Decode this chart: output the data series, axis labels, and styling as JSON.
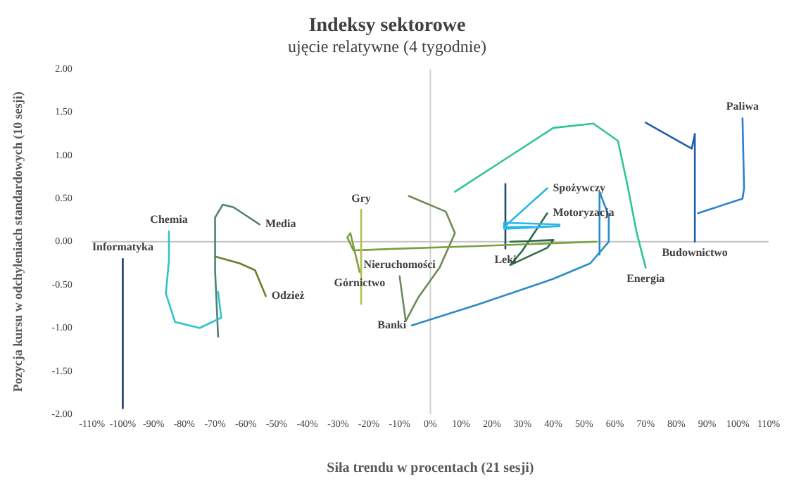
{
  "chart_data": {
    "type": "line",
    "title": "Indeksy sektorowe",
    "subtitle": "ujęcie relatywne (4 tygodnie)",
    "xlabel": "Siła trendu w procentach (21 sesji)",
    "ylabel": "Pozycja kursu w odchyleniach standardowych (10 sesji)",
    "xlim": [
      -110,
      110
    ],
    "ylim": [
      -2,
      2
    ],
    "xticks": [
      {
        "value": -110,
        "label": "-110%"
      },
      {
        "value": -100,
        "label": "-100%"
      },
      {
        "value": -90,
        "label": "-90%"
      },
      {
        "value": -80,
        "label": "-80%"
      },
      {
        "value": -70,
        "label": "-70%"
      },
      {
        "value": -60,
        "label": "-60%"
      },
      {
        "value": -50,
        "label": "-50%"
      },
      {
        "value": -40,
        "label": "-40%"
      },
      {
        "value": -30,
        "label": "-30%"
      },
      {
        "value": -20,
        "label": "-20%"
      },
      {
        "value": -10,
        "label": "-10%"
      },
      {
        "value": 0,
        "label": "0%"
      },
      {
        "value": 10,
        "label": "10%"
      },
      {
        "value": 20,
        "label": "20%"
      },
      {
        "value": 30,
        "label": "30%"
      },
      {
        "value": 40,
        "label": "40%"
      },
      {
        "value": 50,
        "label": "50%"
      },
      {
        "value": 60,
        "label": "60%"
      },
      {
        "value": 70,
        "label": "70%"
      },
      {
        "value": 80,
        "label": "80%"
      },
      {
        "value": 90,
        "label": "90%"
      },
      {
        "value": 100,
        "label": "100%"
      },
      {
        "value": 110,
        "label": "110%"
      }
    ],
    "yticks": [
      {
        "value": -2,
        "label": "-2.00"
      },
      {
        "value": -1.5,
        "label": "-1.50"
      },
      {
        "value": -1,
        "label": "-1.00"
      },
      {
        "value": -0.5,
        "label": "-0.50"
      },
      {
        "value": 0,
        "label": "0.00"
      },
      {
        "value": 0.5,
        "label": "0.50"
      },
      {
        "value": 1,
        "label": "1.00"
      },
      {
        "value": 1.5,
        "label": "1.50"
      },
      {
        "value": 2,
        "label": "2.00"
      }
    ],
    "grid": false,
    "legend": false,
    "line_style": "solid",
    "ref_lines": [
      {
        "axis": "x",
        "value": 0,
        "color": "#d0d0d0"
      },
      {
        "axis": "y",
        "value": 0,
        "color": "#c4c4c4"
      }
    ],
    "series": [
      {
        "name": "Informatyka",
        "color": "#1f3864",
        "x": [
          -100,
          -100
        ],
        "values": [
          -1.93,
          -0.2
        ]
      },
      {
        "name": "Chemia",
        "color": "#2ec4cc",
        "x": [
          -69,
          -68,
          -75,
          -83,
          -86,
          -85,
          -85
        ],
        "values": [
          -0.58,
          -0.88,
          -1.0,
          -0.93,
          -0.6,
          -0.22,
          0.12
        ]
      },
      {
        "name": "Media",
        "color": "#4f7f7a",
        "x": [
          -69,
          -70,
          -70,
          -67.5,
          -64,
          -55.5
        ],
        "values": [
          -1.1,
          -0.33,
          0.28,
          0.43,
          0.4,
          0.2
        ]
      },
      {
        "name": "Odzież",
        "color": "#6b7f2a",
        "x": [
          -70,
          -62,
          -57,
          -53.5
        ],
        "values": [
          -0.17,
          -0.25,
          -0.33,
          -0.63
        ]
      },
      {
        "name": "Gry",
        "color": "#b0c050",
        "x": [
          -22.5,
          -22.5
        ],
        "values": [
          -0.72,
          0.37
        ]
      },
      {
        "name": "Górnictwo",
        "color": "#7aa040",
        "x": [
          54,
          15,
          -10,
          -25,
          -27,
          -26,
          -23
        ],
        "values": [
          0.0,
          -0.05,
          -0.08,
          -0.1,
          0.05,
          0.1,
          -0.35
        ]
      },
      {
        "name": "Nieruchomości",
        "color": "#6e8a5a",
        "x": [
          -7,
          5,
          8,
          3,
          -4,
          -8,
          -10
        ],
        "values": [
          0.53,
          0.35,
          0.1,
          -0.3,
          -0.65,
          -0.92,
          -0.4
        ]
      },
      {
        "name": "Banki",
        "color": "#2b8cc4",
        "x": [
          55,
          55,
          58,
          58,
          52,
          40,
          16,
          -6
        ],
        "values": [
          -0.15,
          0.58,
          0.3,
          0.0,
          -0.25,
          -0.43,
          -0.72,
          -0.97
        ]
      },
      {
        "name": "Energia",
        "color": "#2ec49a",
        "x": [
          8,
          24,
          40,
          53,
          61,
          64,
          67,
          70
        ],
        "values": [
          0.58,
          0.95,
          1.32,
          1.37,
          1.17,
          0.67,
          0.12,
          -0.3
        ]
      },
      {
        "name": "Spożywczy",
        "color": "#29b6e8",
        "x": [
          42,
          24,
          24,
          42,
          24,
          38
        ],
        "values": [
          0.2,
          0.22,
          0.15,
          0.18,
          0.17,
          0.62
        ]
      },
      {
        "name": "Leki",
        "color": "#1f4e6b",
        "x": [
          24.4,
          24.4
        ],
        "values": [
          0.67,
          -0.08
        ]
      },
      {
        "name": "Motoryzacja",
        "color": "#2e6b4a",
        "x": [
          26,
          40,
          38,
          26,
          30,
          38
        ],
        "values": [
          0.0,
          0.02,
          -0.07,
          -0.27,
          -0.1,
          0.33
        ]
      },
      {
        "name": "Budownictwo",
        "color": "#1f5fa8",
        "x": [
          70,
          85,
          86,
          86
        ],
        "values": [
          1.38,
          1.08,
          1.25,
          0.0
        ]
      },
      {
        "name": "Paliwa",
        "color": "#2b7fd4",
        "x": [
          87,
          101.5,
          102,
          101.5
        ],
        "values": [
          0.33,
          0.5,
          0.62,
          1.43
        ]
      }
    ]
  }
}
